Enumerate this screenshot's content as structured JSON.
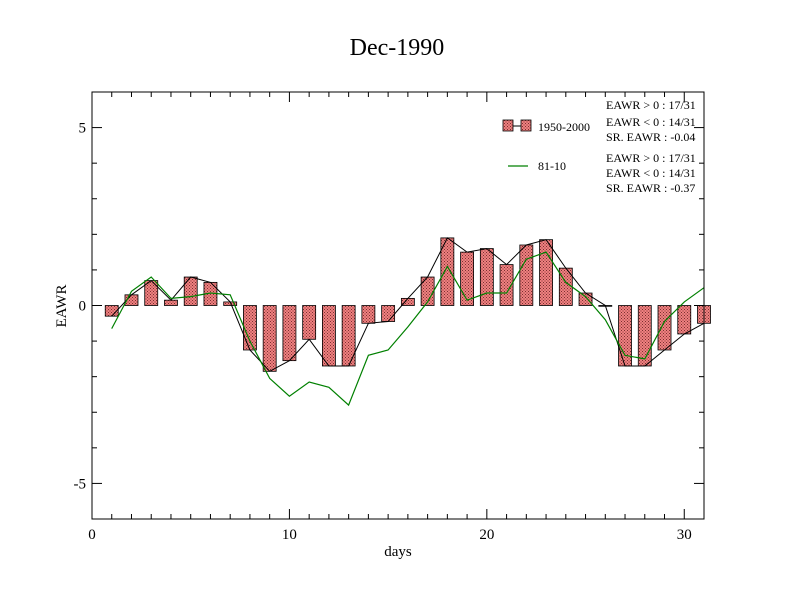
{
  "chart_data": {
    "type": "bar",
    "title": "Dec-1990",
    "xlabel": "days",
    "ylabel": "EAWR",
    "xlim": [
      0,
      31
    ],
    "ylim": [
      -6,
      6
    ],
    "x_ticks": [
      0,
      10,
      20,
      30
    ],
    "y_ticks": [
      -5,
      0,
      5
    ],
    "grid": false,
    "legend_position": "top-right",
    "x": [
      1,
      2,
      3,
      4,
      5,
      6,
      7,
      8,
      9,
      10,
      11,
      12,
      13,
      14,
      15,
      16,
      17,
      18,
      19,
      20,
      21,
      22,
      23,
      24,
      25,
      26,
      27,
      28,
      29,
      30,
      31
    ],
    "series": [
      {
        "name": "1950-2000",
        "kind": "bar",
        "color": "#f08080",
        "values": [
          -0.3,
          0.3,
          0.7,
          0.15,
          0.8,
          0.65,
          0.1,
          -1.25,
          -1.85,
          -1.55,
          -0.95,
          -1.7,
          -1.7,
          -0.5,
          -0.45,
          0.2,
          0.8,
          1.9,
          1.5,
          1.6,
          1.15,
          1.7,
          1.85,
          1.05,
          0.35,
          0.0,
          -1.7,
          -1.7,
          -1.25,
          -0.8,
          -0.5
        ]
      },
      {
        "name": "81-10",
        "kind": "line",
        "color": "#008000",
        "values": [
          -0.65,
          0.4,
          0.8,
          0.2,
          0.25,
          0.35,
          0.3,
          -1.0,
          -2.05,
          -2.55,
          -2.15,
          -2.3,
          -2.8,
          -1.4,
          -1.25,
          -0.6,
          0.1,
          1.1,
          0.15,
          0.35,
          0.35,
          1.3,
          1.5,
          0.65,
          0.25,
          -0.4,
          -1.4,
          -1.5,
          -0.45,
          0.1,
          0.5
        ]
      }
    ],
    "stats": [
      {
        "lines": [
          "EAWR > 0 : 17/31",
          "EAWR < 0 : 14/31",
          "SR. EAWR : -0.04"
        ]
      },
      {
        "lines": [
          "EAWR > 0 : 17/31",
          "EAWR < 0 : 14/31",
          "SR. EAWR : -0.37"
        ]
      }
    ]
  }
}
